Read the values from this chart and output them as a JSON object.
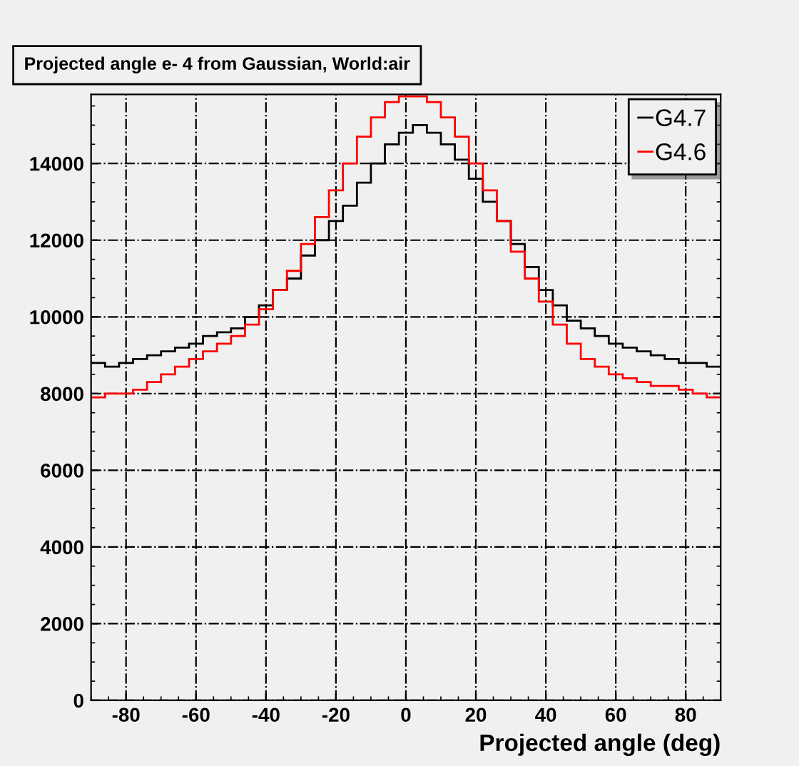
{
  "chart_data": {
    "type": "histogram",
    "title": "Projected angle e- 4 from Gaussian, World:air",
    "xlabel": "Projected angle (deg)",
    "bins": [
      -90,
      -86,
      -82,
      -78,
      -74,
      -70,
      -66,
      -62,
      -58,
      -54,
      -50,
      -46,
      -42,
      -38,
      -34,
      -30,
      -26,
      -22,
      -18,
      -14,
      -10,
      -6,
      -2,
      2,
      6,
      10,
      14,
      18,
      22,
      26,
      30,
      34,
      38,
      42,
      46,
      50,
      54,
      58,
      62,
      66,
      70,
      74,
      78,
      82,
      86,
      90
    ],
    "series": [
      {
        "name": "G4.7",
        "color": "#000000",
        "values": [
          8800,
          8700,
          8800,
          8900,
          9000,
          9100,
          9200,
          9300,
          9500,
          9600,
          9700,
          10000,
          10300,
          10700,
          11000,
          11600,
          12000,
          12500,
          12900,
          13500,
          14000,
          14500,
          14800,
          15000,
          14800,
          14500,
          14100,
          13600,
          13000,
          12500,
          11900,
          11300,
          10700,
          10300,
          9900,
          9700,
          9500,
          9300,
          9200,
          9100,
          9000,
          8900,
          8800,
          8800,
          8700
        ]
      },
      {
        "name": "G4.6",
        "color": "#ff0000",
        "values": [
          7900,
          8000,
          8000,
          8100,
          8300,
          8500,
          8700,
          8900,
          9100,
          9300,
          9500,
          9800,
          10200,
          10700,
          11200,
          11900,
          12600,
          13300,
          14000,
          14700,
          15200,
          15600,
          15750,
          15750,
          15600,
          15200,
          14700,
          14000,
          13300,
          12500,
          11700,
          11000,
          10400,
          9800,
          9300,
          8900,
          8700,
          8500,
          8400,
          8300,
          8200,
          8200,
          8100,
          8000,
          7900
        ]
      }
    ],
    "xlim": [
      -90,
      90
    ],
    "ylim": [
      0,
      15800
    ],
    "xticks": [
      -80,
      -60,
      -40,
      -20,
      0,
      20,
      40,
      60,
      80
    ],
    "yticks": [
      0,
      2000,
      4000,
      6000,
      8000,
      10000,
      12000,
      14000
    ],
    "grid": true,
    "legend": "top right"
  }
}
